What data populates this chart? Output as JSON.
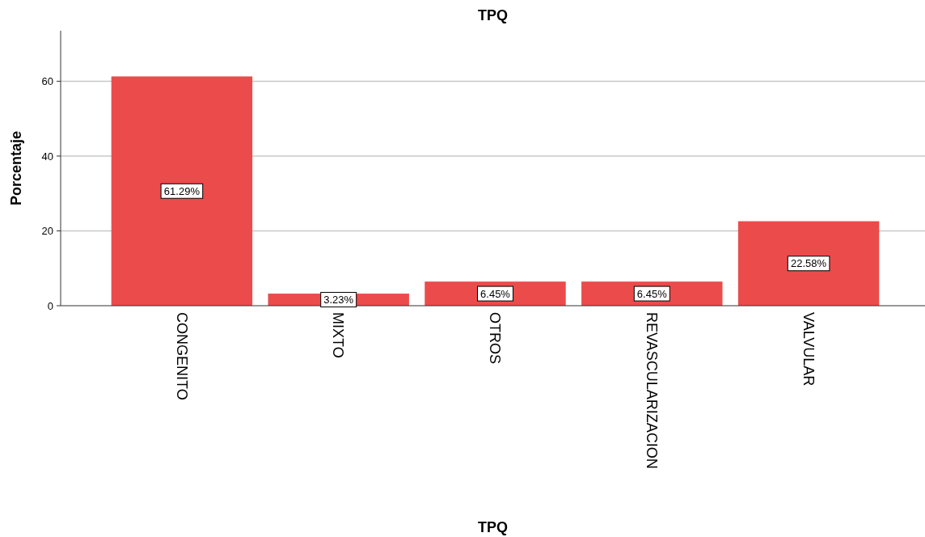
{
  "chart_data": {
    "type": "bar",
    "title": "TPQ",
    "xlabel": "TPQ",
    "ylabel": "Porcentaje",
    "categories": [
      "CONGENITO",
      "MIXTO",
      "OTROS",
      "REVASCULARIZACION",
      "VALVULAR"
    ],
    "values": [
      61.29,
      3.23,
      6.45,
      6.45,
      22.58
    ],
    "value_labels": [
      "61.29%",
      "3.23%",
      "6.45%",
      "6.45%",
      "22.58%"
    ],
    "color": "#ec4b4b",
    "ylim": [
      0,
      73.5
    ],
    "yticks": [
      0,
      20,
      40,
      60
    ],
    "grid": "y"
  }
}
